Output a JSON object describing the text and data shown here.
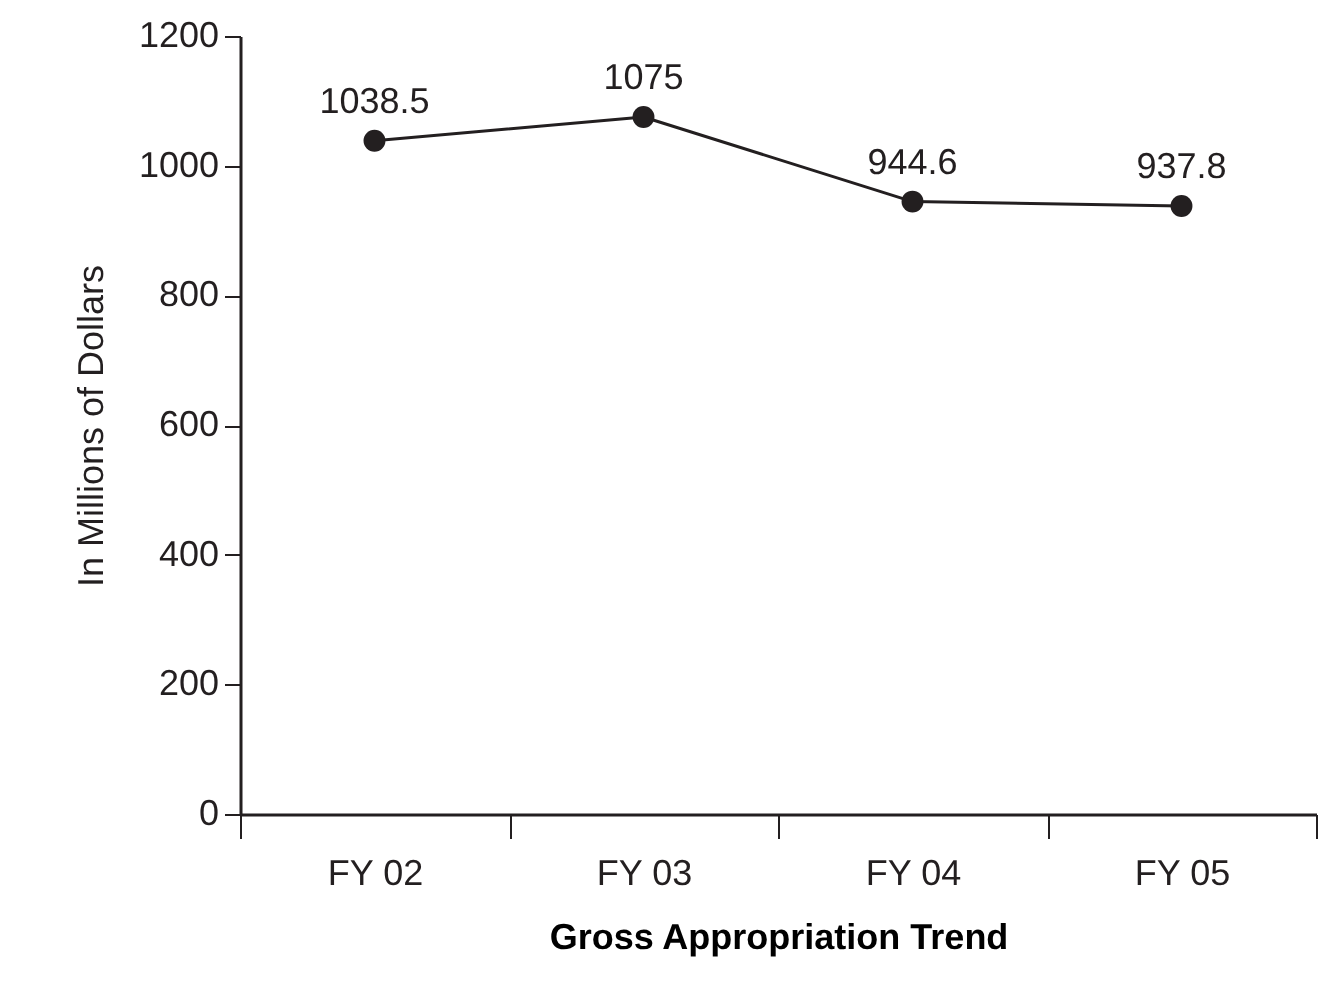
{
  "chart_data": {
    "type": "line",
    "xlabel": "Gross Appropriation Trend",
    "ylabel": "In Millions of Dollars",
    "categories": [
      "FY 02",
      "FY 03",
      "FY 04",
      "FY 05"
    ],
    "values": [
      1038.5,
      1075,
      944.6,
      937.8
    ],
    "color": "#231f20",
    "ylim": [
      0,
      1200
    ],
    "yticks": [
      0,
      200,
      400,
      600,
      800,
      1000,
      1200
    ],
    "data_labels": true,
    "marker": "circle"
  }
}
